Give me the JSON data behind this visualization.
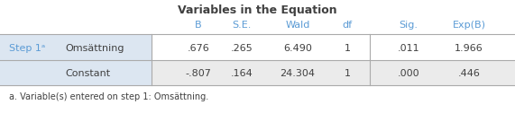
{
  "title": "Variables in the Equation",
  "col_header_color": "#5b9bd5",
  "header_labels": [
    "B",
    "S.E.",
    "Wald",
    "df",
    "Sig.",
    "Exp(B)"
  ],
  "rows": [
    {
      "step": "Step 1ᵃ",
      "var": "Omsättning",
      "B": ".676",
      "SE": ".265",
      "Wald": "6.490",
      "df": "1",
      "Sig": ".011",
      "ExpB": "1.966"
    },
    {
      "step": "",
      "var": "Constant",
      "B": "-.807",
      "SE": ".164",
      "Wald": "24.304",
      "df": "1",
      "Sig": ".000",
      "ExpB": ".446"
    }
  ],
  "footnote": "a. Variable(s) entered on step 1: Omsättning.",
  "bg_step_color": "#dce6f1",
  "bg_row0_color": "#ffffff",
  "bg_row1_color": "#ebebeb",
  "line_color": "#aaaaaa",
  "text_color": "#404040",
  "step_color": "#5b9bd5",
  "title_fontsize": 9,
  "header_fontsize": 8,
  "cell_fontsize": 8,
  "footnote_fontsize": 7,
  "figure_width": 5.71,
  "figure_height": 1.36,
  "dpi": 100
}
